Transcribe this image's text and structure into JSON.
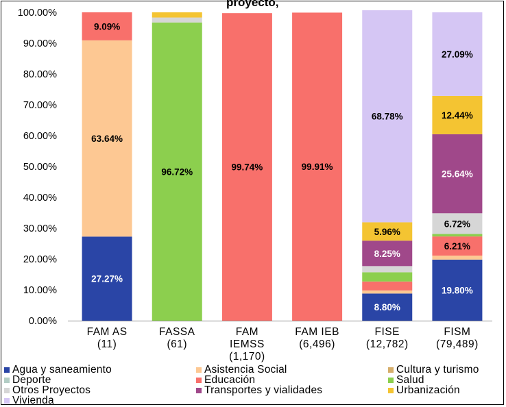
{
  "title_partial": "proyecto, ",
  "chart_data": {
    "type": "bar",
    "stacked": true,
    "normalized": true,
    "categories": [
      "FAM AS (11)",
      "FASSA (61)",
      "FAM IEMSS (1,170)",
      "FAM IEB (6,496)",
      "FISE (12,782)",
      "FISM (79,489)"
    ],
    "category_lines": [
      [
        "FAM AS",
        "(11)"
      ],
      [
        "FASSA",
        "(61)"
      ],
      [
        "FAM",
        "IEMSS",
        "(1,170)"
      ],
      [
        "FAM IEB",
        "(6,496)"
      ],
      [
        "FISE",
        "(12,782)"
      ],
      [
        "FISM",
        "(79,489)"
      ]
    ],
    "y_ticks": [
      "0.00%",
      "10.00%",
      "20.00%",
      "30.00%",
      "40.00%",
      "50.00%",
      "60.00%",
      "70.00%",
      "80.00%",
      "90.00%",
      "100.00%"
    ],
    "ylim": [
      0,
      100
    ],
    "grid": false,
    "legend_position": "bottom",
    "series": [
      {
        "name": "Agua y saneamiento",
        "color": "#2a45a6",
        "values": [
          27.27,
          0,
          0,
          0,
          8.8,
          19.8
        ],
        "labels": [
          "27.27%",
          "",
          "",
          "",
          "8.80%",
          "19.80%"
        ],
        "label_color": "#ffffff"
      },
      {
        "name": "Asistencia Social",
        "color": "#fdc893",
        "values": [
          63.64,
          0,
          0,
          0,
          1.0,
          1.3
        ],
        "labels": [
          "63.64%",
          "",
          "",
          "",
          "",
          ""
        ],
        "label_color": "#000000"
      },
      {
        "name": "Cultura y turismo",
        "color": "#d6ae6a",
        "values": [
          0,
          0,
          0,
          0,
          0,
          0
        ],
        "labels": [
          "",
          "",
          "",
          "",
          "",
          ""
        ],
        "label_color": "#000000"
      },
      {
        "name": "Deporte",
        "color": "#b3cdc5",
        "values": [
          0,
          0,
          0,
          0,
          0,
          0
        ],
        "labels": [
          "",
          "",
          "",
          "",
          "",
          ""
        ],
        "label_color": "#000000"
      },
      {
        "name": "Educación",
        "color": "#f8706b",
        "values": [
          9.09,
          0,
          99.74,
          99.91,
          2.9,
          6.21
        ],
        "labels": [
          "9.09%",
          "",
          "99.74%",
          "99.91%",
          "",
          "6.21%"
        ],
        "label_color": "#000000"
      },
      {
        "name": "Salud",
        "color": "#8ccf4e",
        "values": [
          0,
          96.72,
          0,
          0,
          3.0,
          0.8
        ],
        "labels": [
          "",
          "96.72%",
          "",
          "",
          "",
          ""
        ],
        "label_color": "#000000"
      },
      {
        "name": "Otros Proyectos",
        "color": "#d6d6d6",
        "values": [
          0,
          1.6,
          0,
          0,
          2.0,
          6.72
        ],
        "labels": [
          "",
          "",
          "",
          "",
          "",
          "6.72%"
        ],
        "label_color": "#000000"
      },
      {
        "name": "Transportes y vialidades",
        "color": "#a0488a",
        "values": [
          0,
          0,
          0,
          0,
          8.25,
          25.64
        ],
        "labels": [
          "",
          "",
          "",
          "",
          "8.25%",
          "25.64%"
        ],
        "label_color": "#ffffff"
      },
      {
        "name": "Urbanización",
        "color": "#f4c432",
        "values": [
          0,
          1.68,
          0,
          0,
          5.96,
          12.44
        ],
        "labels": [
          "",
          "",
          "",
          "",
          "5.96%",
          "12.44%"
        ],
        "label_color": "#000000"
      },
      {
        "name": "Vivienda",
        "color": "#d5c6f4",
        "values": [
          0,
          0,
          0,
          0,
          68.78,
          27.09
        ],
        "labels": [
          "",
          "",
          "",
          "",
          "68.78%",
          "27.09%"
        ],
        "label_color": "#000000"
      }
    ]
  }
}
